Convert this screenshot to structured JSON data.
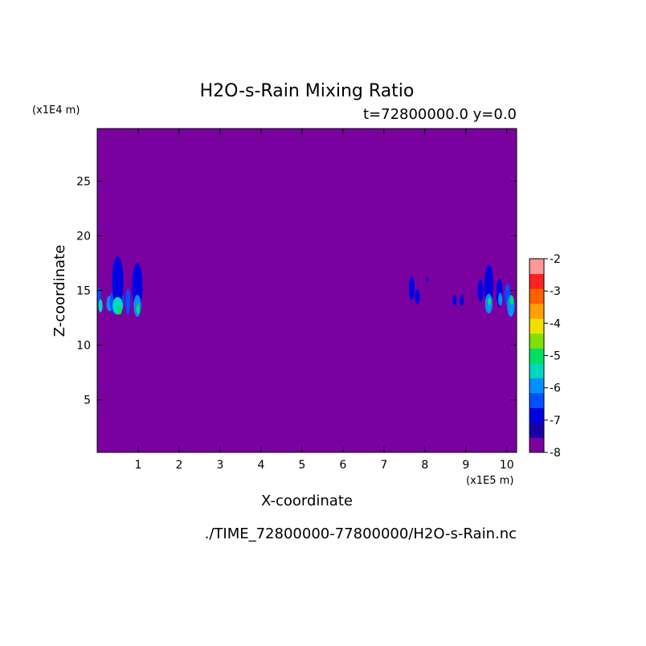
{
  "chart_data": {
    "type": "heatmap",
    "title": "H2O-s-Rain Mixing Ratio",
    "subtitle": "t=72800000.0 y=0.0",
    "xlabel": "X-coordinate",
    "ylabel": "Z-coordinate",
    "x_unit": "(x1E5 m)",
    "y_unit": "(x1E4 m)",
    "xlim": [
      0,
      10.24
    ],
    "ylim": [
      0.2,
      29.8
    ],
    "x_ticks": [
      1,
      2,
      3,
      4,
      5,
      6,
      7,
      8,
      9,
      10
    ],
    "y_ticks": [
      5,
      10,
      15,
      20,
      25
    ],
    "background_value": -8,
    "colorbar": {
      "min": -8,
      "max": -2,
      "tick_labels": [
        "-2",
        "-3",
        "-4",
        "-5",
        "-6",
        "-7",
        "-8"
      ],
      "colors": [
        "#7b00a0",
        "#1a00a8",
        "#0000e0",
        "#0050ff",
        "#0090ff",
        "#00d8c0",
        "#00e060",
        "#80e000",
        "#f0e000",
        "#ffa000",
        "#ff6000",
        "#ff2020",
        "#ff9898"
      ]
    },
    "cells": [
      {
        "x": 0.05,
        "z": 14.5,
        "w": 0.08,
        "h": 1.6,
        "v": -6.5
      },
      {
        "x": 0.08,
        "z": 13.6,
        "w": 0.1,
        "h": 1.2,
        "v": -5.5
      },
      {
        "x": 0.3,
        "z": 13.8,
        "w": 0.15,
        "h": 1.4,
        "v": -6.0
      },
      {
        "x": 0.35,
        "z": 14.2,
        "w": 0.1,
        "h": 0.8,
        "v": -5.0
      },
      {
        "x": 0.48,
        "z": 14.0,
        "w": 0.35,
        "h": 2.4,
        "v": -6.5
      },
      {
        "x": 0.5,
        "z": 15.8,
        "w": 0.28,
        "h": 4.6,
        "v": -7.0
      },
      {
        "x": 0.5,
        "z": 13.6,
        "w": 0.25,
        "h": 1.6,
        "v": -5.5
      },
      {
        "x": 0.55,
        "z": 13.2,
        "w": 0.1,
        "h": 0.8,
        "v": -5.0
      },
      {
        "x": 0.75,
        "z": 14.0,
        "w": 0.12,
        "h": 2.4,
        "v": -6.5
      },
      {
        "x": 0.98,
        "z": 15.4,
        "w": 0.26,
        "h": 4.2,
        "v": -7.0
      },
      {
        "x": 0.98,
        "z": 13.6,
        "w": 0.18,
        "h": 2.0,
        "v": -6.0
      },
      {
        "x": 1.0,
        "z": 13.3,
        "w": 0.08,
        "h": 0.9,
        "v": -5.0
      },
      {
        "x": 7.68,
        "z": 15.2,
        "w": 0.14,
        "h": 2.2,
        "v": -7.0
      },
      {
        "x": 7.82,
        "z": 14.4,
        "w": 0.12,
        "h": 1.4,
        "v": -7.0
      },
      {
        "x": 8.06,
        "z": 16.0,
        "w": 0.05,
        "h": 0.4,
        "v": -7.0
      },
      {
        "x": 8.73,
        "z": 14.1,
        "w": 0.1,
        "h": 1.0,
        "v": -7.0
      },
      {
        "x": 8.9,
        "z": 14.1,
        "w": 0.1,
        "h": 1.0,
        "v": -7.0
      },
      {
        "x": 9.36,
        "z": 15.0,
        "w": 0.14,
        "h": 2.0,
        "v": -7.0
      },
      {
        "x": 9.56,
        "z": 15.4,
        "w": 0.22,
        "h": 4.0,
        "v": -7.0
      },
      {
        "x": 9.56,
        "z": 13.8,
        "w": 0.18,
        "h": 1.8,
        "v": -6.0
      },
      {
        "x": 9.58,
        "z": 14.0,
        "w": 0.08,
        "h": 0.7,
        "v": -5.0
      },
      {
        "x": 9.82,
        "z": 14.8,
        "w": 0.16,
        "h": 2.6,
        "v": -7.0
      },
      {
        "x": 9.84,
        "z": 14.2,
        "w": 0.1,
        "h": 1.2,
        "v": -6.0
      },
      {
        "x": 10.02,
        "z": 14.6,
        "w": 0.14,
        "h": 2.0,
        "v": -6.5
      },
      {
        "x": 10.1,
        "z": 13.6,
        "w": 0.18,
        "h": 2.0,
        "v": -6.0
      },
      {
        "x": 10.12,
        "z": 14.1,
        "w": 0.1,
        "h": 0.8,
        "v": -5.0
      }
    ]
  },
  "footer": {
    "file_path": "./TIME_72800000-77800000/H2O-s-Rain.nc"
  }
}
